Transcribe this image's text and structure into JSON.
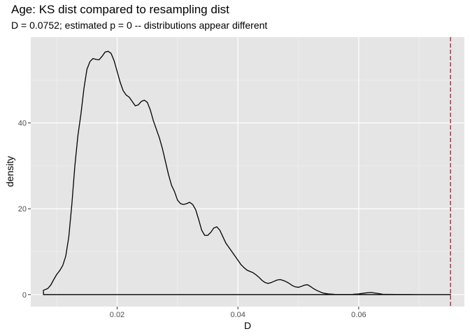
{
  "chart_data": {
    "type": "line",
    "title": "Age: KS dist compared to resampling dist",
    "subtitle": "D = 0.0752; estimated p = 0 -- distributions appear different",
    "xlabel": "D",
    "ylabel": "density",
    "xlim": [
      0.0057,
      0.0775
    ],
    "ylim": [
      -2.8,
      60
    ],
    "x_ticks": [
      0.02,
      0.04,
      0.06
    ],
    "x_tick_labels": [
      "0.02",
      "0.04",
      "0.06"
    ],
    "y_ticks": [
      0,
      20,
      40
    ],
    "y_tick_labels": [
      "0",
      "20",
      "40"
    ],
    "grid": true,
    "background": "#e5e5e5",
    "reference_line": {
      "x": 0.0752,
      "color": "#b2182b",
      "style": "dashed"
    },
    "series": [
      {
        "color": "#000000",
        "x": [
          0.0078,
          0.0085,
          0.009,
          0.0095,
          0.01,
          0.0105,
          0.011,
          0.0115,
          0.012,
          0.0125,
          0.013,
          0.0135,
          0.014,
          0.0145,
          0.015,
          0.0155,
          0.016,
          0.0165,
          0.017,
          0.0175,
          0.018,
          0.0185,
          0.019,
          0.0195,
          0.02,
          0.0205,
          0.021,
          0.0215,
          0.022,
          0.0225,
          0.023,
          0.0235,
          0.024,
          0.0245,
          0.025,
          0.0255,
          0.026,
          0.0265,
          0.027,
          0.0275,
          0.028,
          0.0285,
          0.029,
          0.0295,
          0.03,
          0.0305,
          0.031,
          0.0315,
          0.032,
          0.0325,
          0.033,
          0.0335,
          0.034,
          0.0345,
          0.035,
          0.0355,
          0.036,
          0.0365,
          0.037,
          0.0375,
          0.038,
          0.0385,
          0.039,
          0.0395,
          0.04,
          0.0405,
          0.041,
          0.0415,
          0.042,
          0.0425,
          0.043,
          0.0435,
          0.044,
          0.0445,
          0.045,
          0.0455,
          0.046,
          0.0465,
          0.047,
          0.0475,
          0.048,
          0.0485,
          0.049,
          0.0495,
          0.05,
          0.0505,
          0.051,
          0.0515,
          0.052,
          0.0525,
          0.053,
          0.0535,
          0.054,
          0.0545,
          0.055,
          0.056,
          0.057,
          0.058,
          0.059,
          0.06,
          0.061,
          0.062,
          0.063,
          0.064,
          0.066,
          0.068,
          0.07,
          0.072,
          0.0752
        ],
        "y": [
          1,
          1.4,
          2.2,
          3.5,
          4.7,
          5.6,
          6.8,
          9,
          13.5,
          21,
          30,
          37,
          42,
          48,
          52.5,
          54.3,
          55,
          54.8,
          54.7,
          55.5,
          56.5,
          56.7,
          56.2,
          54.5,
          52,
          49.5,
          47.5,
          46.5,
          46,
          45,
          44,
          44.2,
          45,
          45.3,
          44.8,
          43,
          40.5,
          38.5,
          36.5,
          34,
          31,
          28,
          25.5,
          24,
          22,
          21.2,
          21,
          21.2,
          21.5,
          21,
          19.8,
          17.5,
          15,
          13.8,
          13.8,
          14.5,
          15.5,
          15.8,
          15,
          13.5,
          12,
          11,
          10,
          9,
          8,
          7,
          6.3,
          5.7,
          5.4,
          5.1,
          4.6,
          4,
          3.3,
          2.8,
          2.6,
          2.8,
          3.1,
          3.4,
          3.5,
          3.3,
          3,
          2.6,
          2.1,
          1.8,
          1.7,
          1.9,
          2.2,
          2.3,
          1.9,
          1.4,
          1,
          0.7,
          0.4,
          0.25,
          0.15,
          0.06,
          0.03,
          0.02,
          0.05,
          0.15,
          0.35,
          0.5,
          0.3,
          0.08,
          0.03,
          0.02,
          0.01,
          0.01,
          0.0
        ]
      }
    ]
  }
}
